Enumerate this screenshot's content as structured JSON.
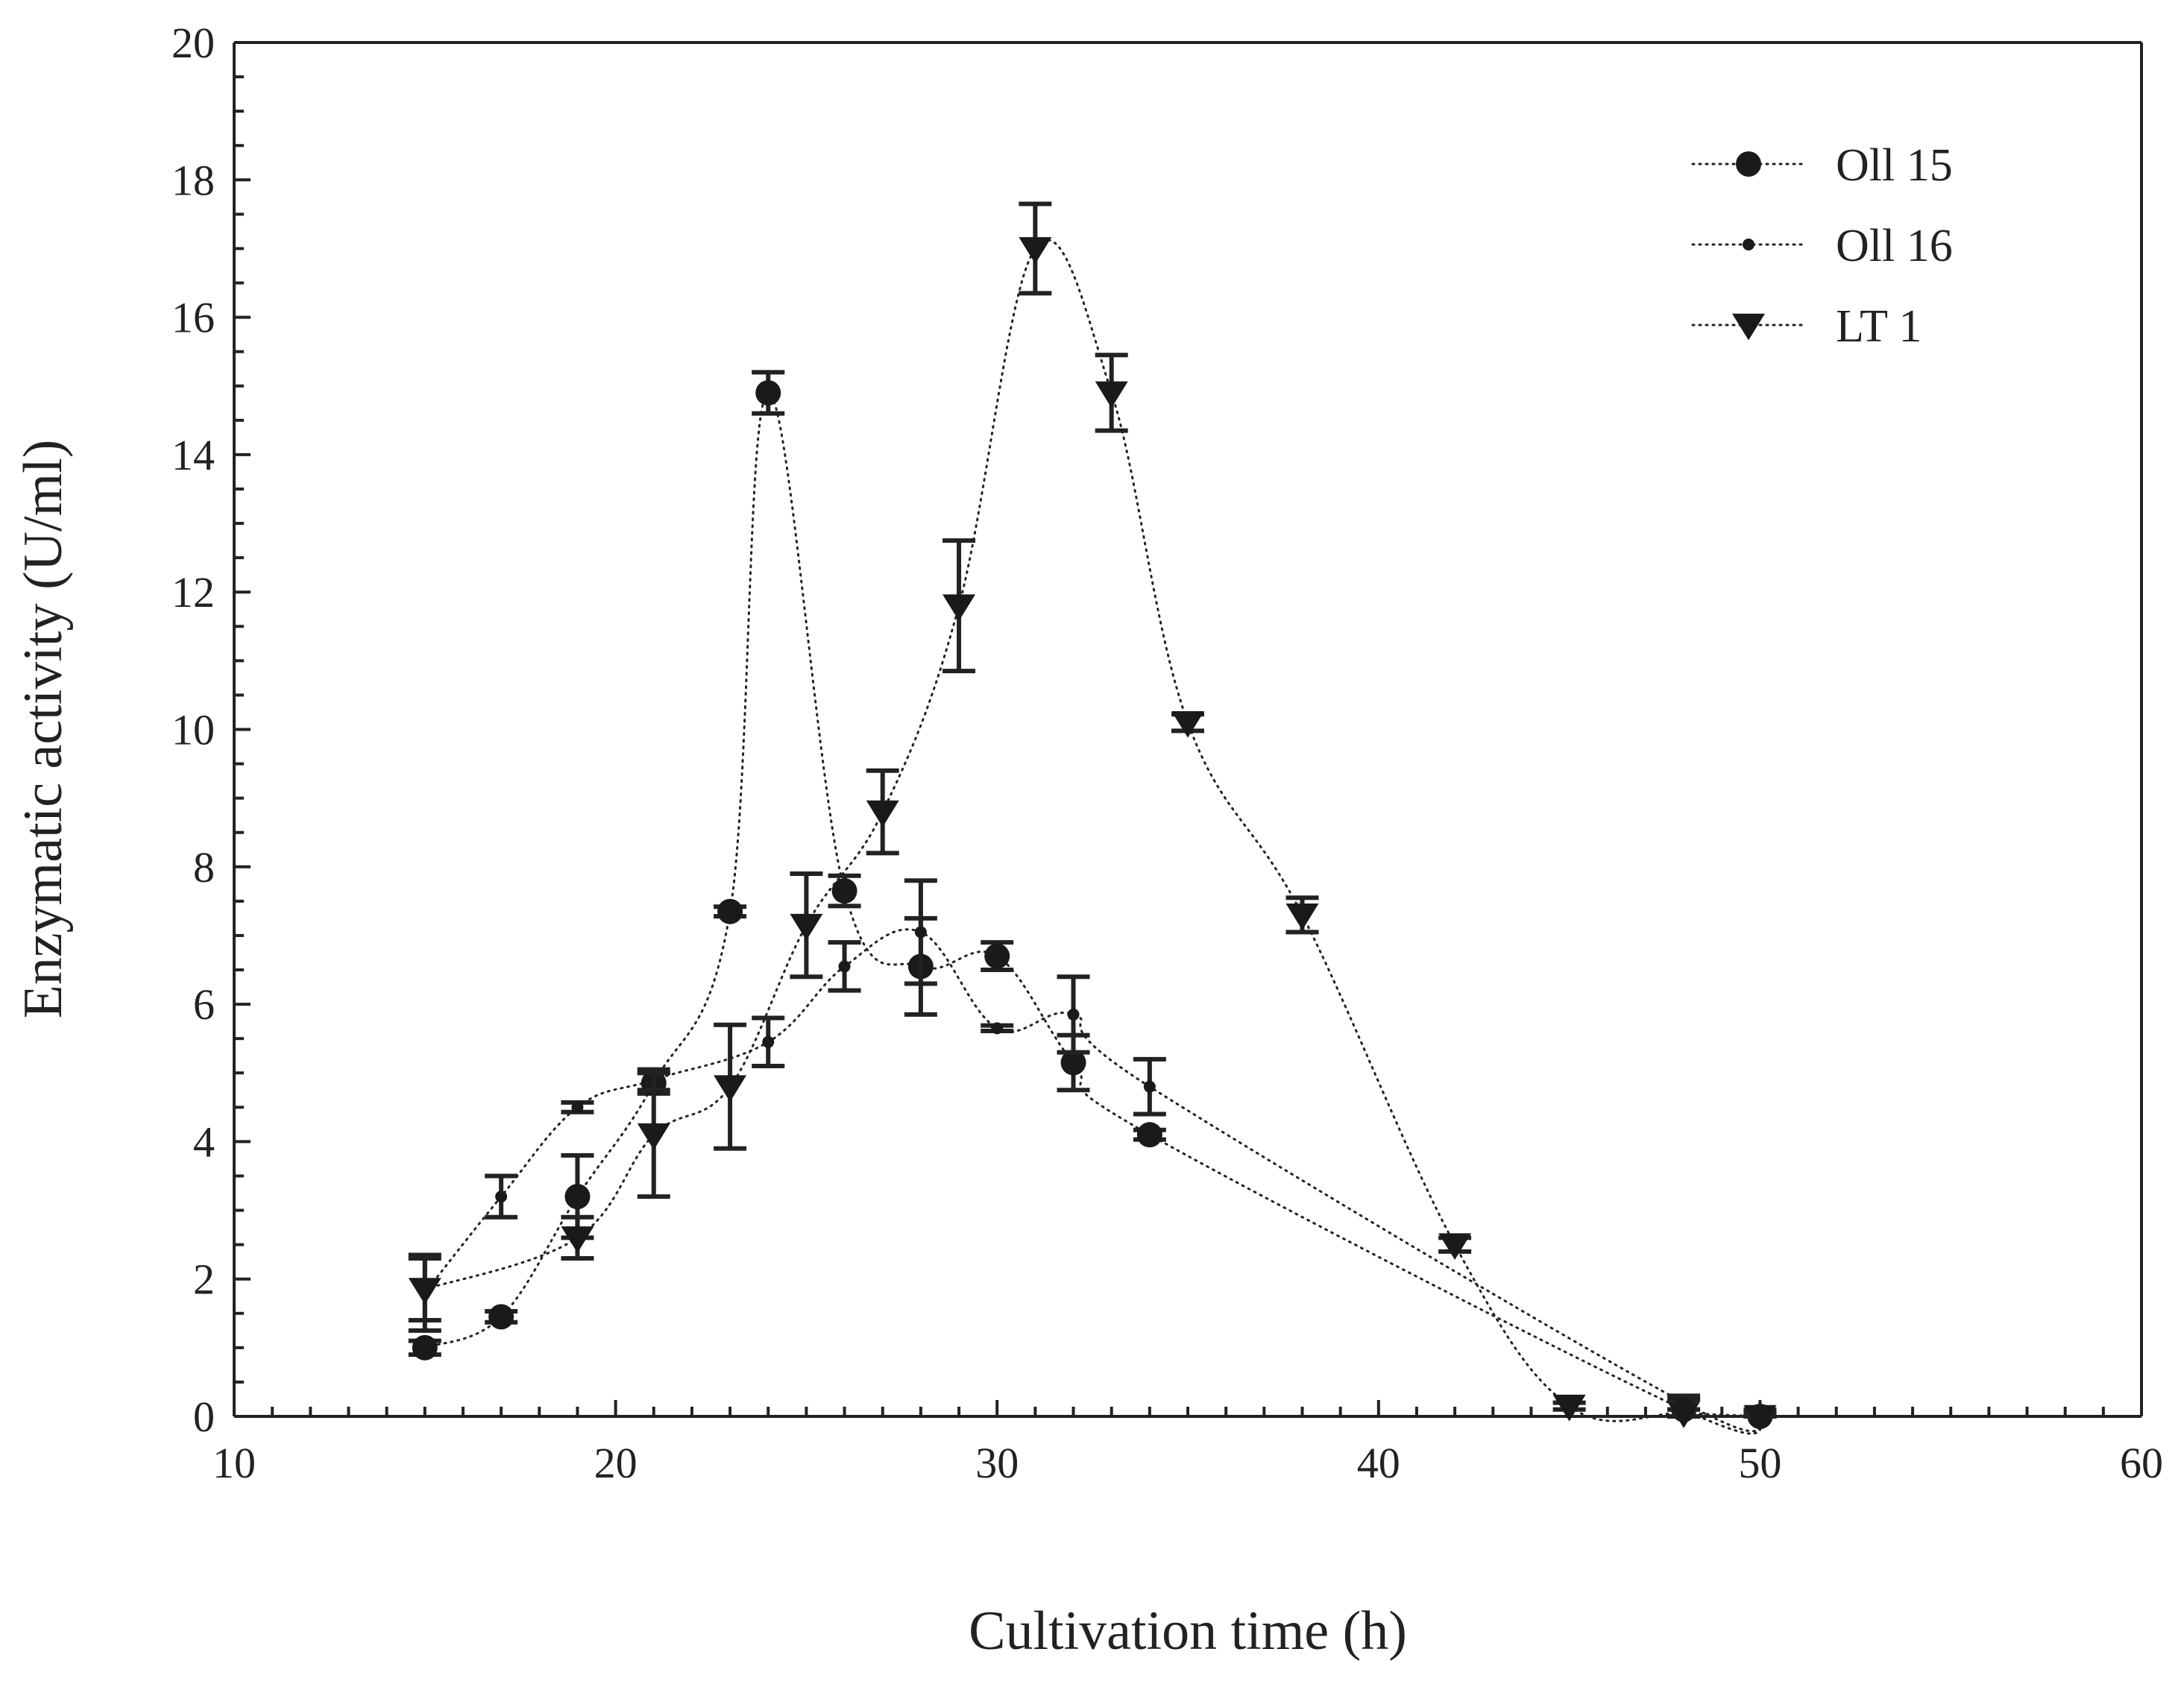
{
  "chart_data": {
    "type": "line",
    "xlabel": "Cultivation time (h)",
    "ylabel": "Enzymatic activity (U/ml)",
    "xlim": [
      10,
      60
    ],
    "ylim": [
      0,
      20
    ],
    "xticks": [
      10,
      20,
      30,
      40,
      50,
      60
    ],
    "yticks": [
      0,
      2,
      4,
      6,
      8,
      10,
      12,
      14,
      16,
      18,
      20
    ],
    "x_minor_step": 1,
    "y_minor_step": 0.5,
    "grid": false,
    "legend_position": "top-right",
    "series": [
      {
        "name": "Oll 15",
        "marker": "circle",
        "x": [
          15,
          17,
          19,
          21,
          23,
          24,
          26,
          28,
          30,
          32,
          34,
          48,
          50
        ],
        "y": [
          1.0,
          1.45,
          3.2,
          4.85,
          7.35,
          14.9,
          7.65,
          6.55,
          6.7,
          5.15,
          4.1,
          0.1,
          0.0
        ],
        "err": [
          0.1,
          0.08,
          0.6,
          0.15,
          0.07,
          0.3,
          0.22,
          0.7,
          0.2,
          0.4,
          0.07,
          0.15,
          0.05
        ]
      },
      {
        "name": "Oll 16",
        "marker": "small-dot",
        "x": [
          15,
          17,
          19,
          21,
          24,
          26,
          28,
          30,
          32,
          34,
          48,
          50
        ],
        "y": [
          1.8,
          3.2,
          4.5,
          4.9,
          5.45,
          6.55,
          7.05,
          5.65,
          5.85,
          4.8,
          0.2,
          0.05
        ],
        "err": [
          0.55,
          0.3,
          0.07,
          0.15,
          0.35,
          0.35,
          0.75,
          0.04,
          0.55,
          0.4,
          0.1,
          0.05
        ]
      },
      {
        "name": "LT 1",
        "marker": "triangle-down",
        "x": [
          15,
          19,
          21,
          23,
          25,
          27,
          29,
          31,
          33,
          35,
          38,
          42,
          45,
          48,
          50
        ],
        "y": [
          1.85,
          2.6,
          4.1,
          4.8,
          7.15,
          8.8,
          11.8,
          17.0,
          14.9,
          10.1,
          7.3,
          2.5,
          0.15,
          0.05,
          0.0
        ],
        "err": [
          0.45,
          0.3,
          0.9,
          0.9,
          0.75,
          0.6,
          0.95,
          0.65,
          0.55,
          0.12,
          0.25,
          0.1,
          0.05,
          0.05,
          0.05
        ]
      }
    ]
  }
}
